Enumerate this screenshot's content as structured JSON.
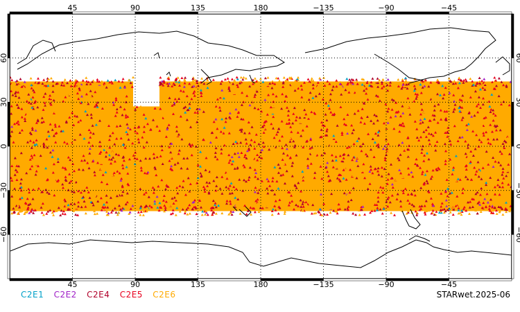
{
  "chart_data": {
    "type": "scatter",
    "projection": "equirectangular",
    "lon_center": 180,
    "lat_range": [
      -90,
      90
    ],
    "top_lon_labels": [
      "45",
      "90",
      "135",
      "180",
      "−135",
      "−90",
      "−45"
    ],
    "bottom_lon_labels": [
      "45",
      "90",
      "135",
      "180",
      "−135",
      "−90",
      "−45"
    ],
    "lat_labels": [
      "60",
      "30",
      "0",
      "−30",
      "−60"
    ],
    "lon_ticks": [
      45,
      90,
      135,
      180,
      225,
      270,
      315
    ],
    "lat_ticks": [
      60,
      30,
      0,
      -30,
      -60
    ],
    "observation_lat_extent": [
      -45,
      45
    ],
    "grid": true,
    "series": [
      {
        "name": "C2E1",
        "color": "#00a0c8"
      },
      {
        "name": "C2E2",
        "color": "#a020c8"
      },
      {
        "name": "C2E4",
        "color": "#b0002a"
      },
      {
        "name": "C2E5",
        "color": "#e8001e"
      },
      {
        "name": "C2E6",
        "color": "#ffaa00"
      }
    ],
    "credit": "STARwet.2025-06"
  }
}
